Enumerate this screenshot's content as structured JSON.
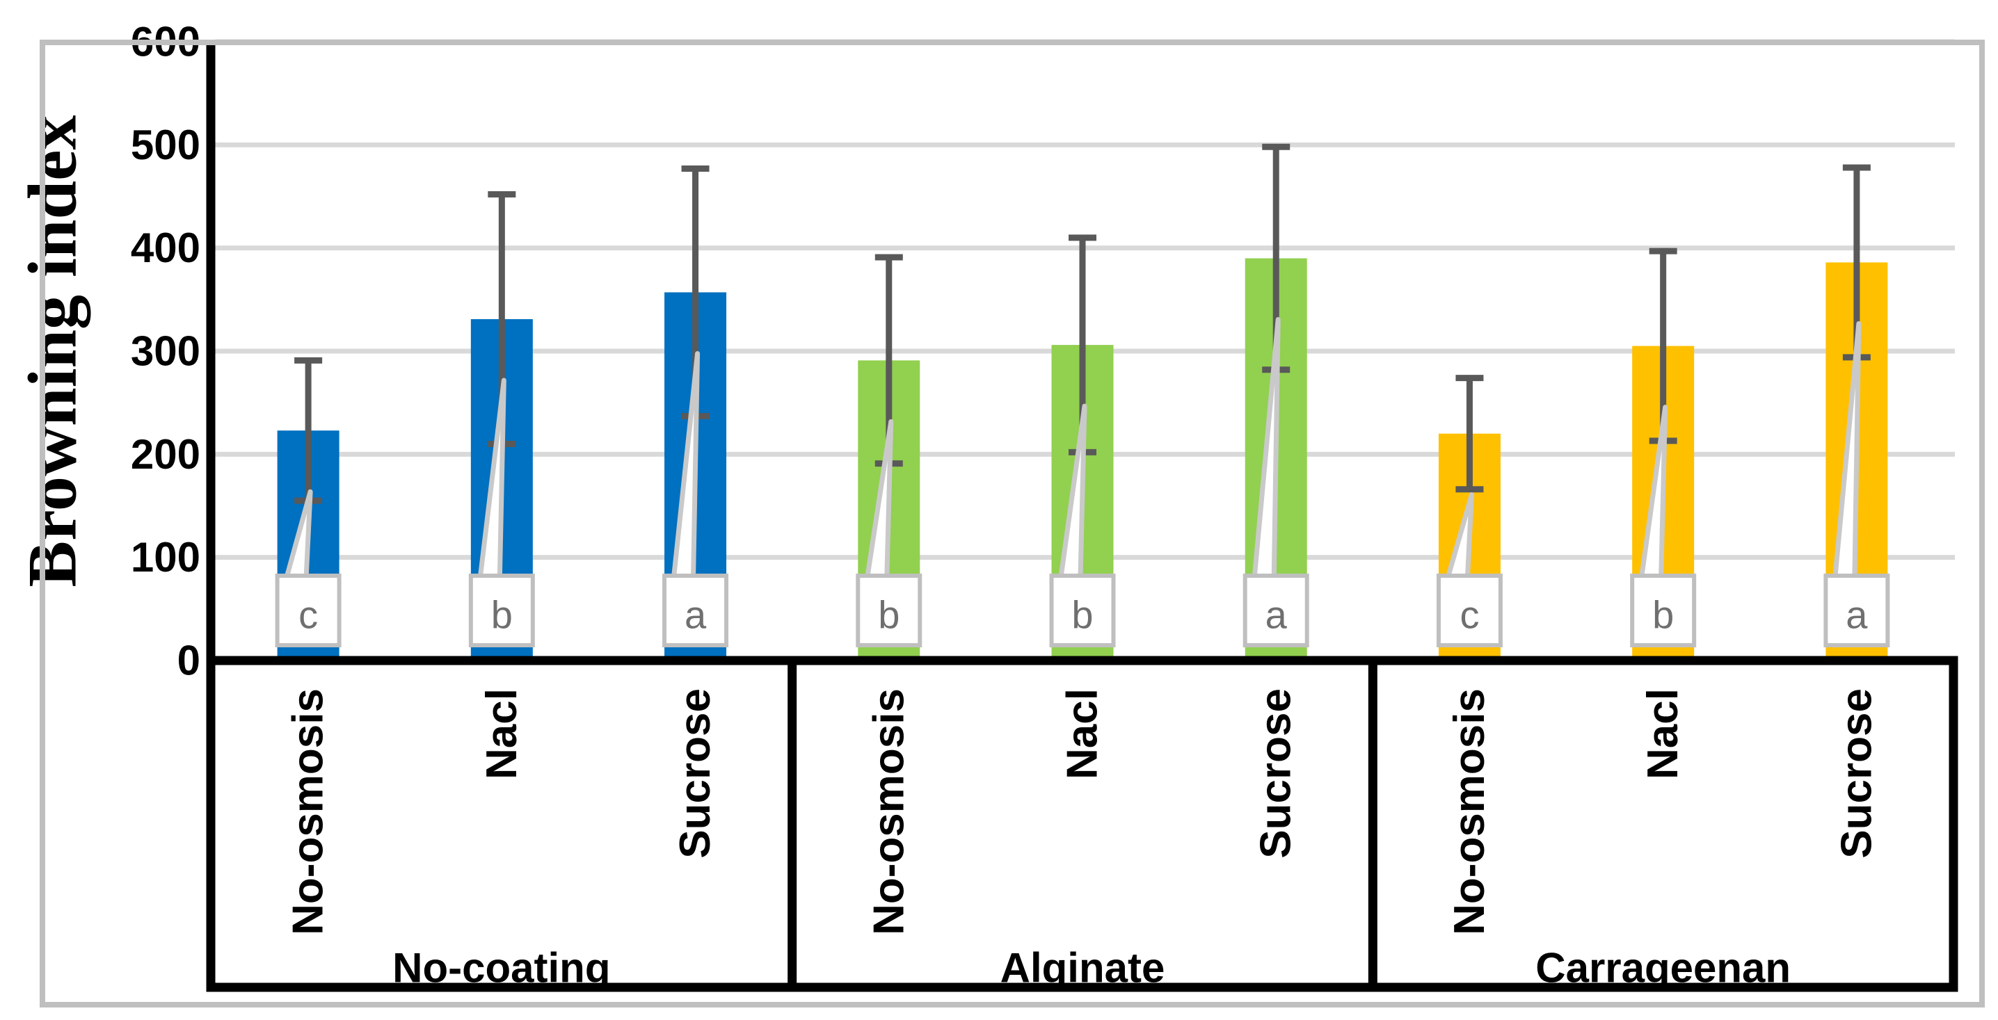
{
  "chart_data": {
    "type": "bar",
    "title": "",
    "ylabel": "Browning index",
    "xlabel": "",
    "ylim": [
      0,
      600
    ],
    "yticks": [
      "0",
      "100",
      "200",
      "300",
      "400",
      "500",
      "600"
    ],
    "ytick_values": [
      0,
      100,
      200,
      300,
      400,
      500,
      600
    ],
    "grid": true,
    "legend_position": "none",
    "categories_per_group": [
      "No-osmosis",
      "Nacl",
      "Sucrose"
    ],
    "groups": [
      {
        "label": "No-coating",
        "color": "#0070C0",
        "bars": [
          {
            "category": "No-osmosis",
            "value": 223,
            "error": 68,
            "letter": "c"
          },
          {
            "category": "Nacl",
            "value": 331,
            "error": 121,
            "letter": "b"
          },
          {
            "category": "Sucrose",
            "value": 357,
            "error": 120,
            "letter": "a"
          }
        ]
      },
      {
        "label": "Alginate",
        "color": "#92D050",
        "bars": [
          {
            "category": "No-osmosis",
            "value": 291,
            "error": 100,
            "letter": "b"
          },
          {
            "category": "Nacl",
            "value": 306,
            "error": 104,
            "letter": "b"
          },
          {
            "category": "Sucrose",
            "value": 390,
            "error": 108,
            "letter": "a"
          }
        ]
      },
      {
        "label": "Carrageenan",
        "color": "#FFC000",
        "bars": [
          {
            "category": "No-osmosis",
            "value": 220,
            "error": 54,
            "letter": "c"
          },
          {
            "category": "Nacl",
            "value": 305,
            "error": 92,
            "letter": "b"
          },
          {
            "category": "Sucrose",
            "value": 386,
            "error": 92,
            "letter": "a"
          }
        ]
      }
    ]
  },
  "colors": {
    "bar_blue": "#0070C0",
    "bar_green": "#92D050",
    "bar_yellow": "#FFC000",
    "error_bar": "#595959",
    "gridline": "#D9D9D9",
    "axis_line": "#000000",
    "label_box_border": "#BFBFBF",
    "label_box_fill": "#FFFFFF",
    "leader_line": "#C9C9C9",
    "letter_text": "#6F6F6F",
    "figure_border": "#BFBFBF",
    "tick_text": "#000000",
    "background": "#FFFFFF"
  }
}
